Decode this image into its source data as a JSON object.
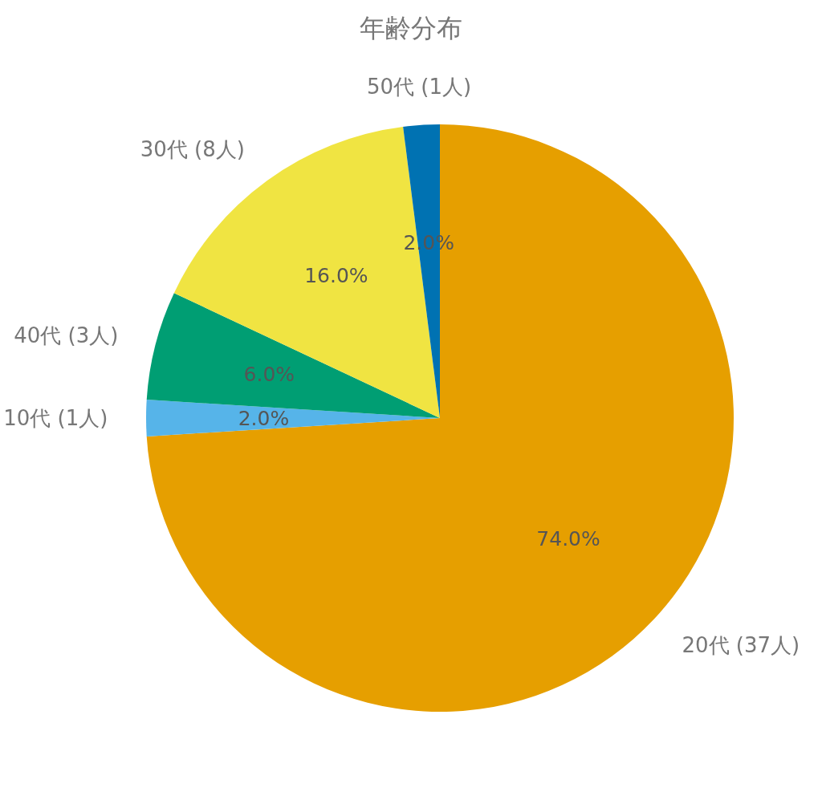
{
  "chart_data": {
    "type": "pie",
    "title": "年齢分布",
    "categories": [
      "20代 (37人)",
      "10代 (1人)",
      "40代 (3人)",
      "30代 (8人)",
      "50代 (1人)"
    ],
    "values": [
      74,
      2,
      6,
      16,
      2
    ],
    "value_labels": [
      "74.0%",
      "2.0%",
      "6.0%",
      "16.0%",
      "2.0%"
    ],
    "colors": [
      "#e69f00",
      "#56b4e9",
      "#009e73",
      "#f0e442",
      "#0072b2"
    ]
  }
}
